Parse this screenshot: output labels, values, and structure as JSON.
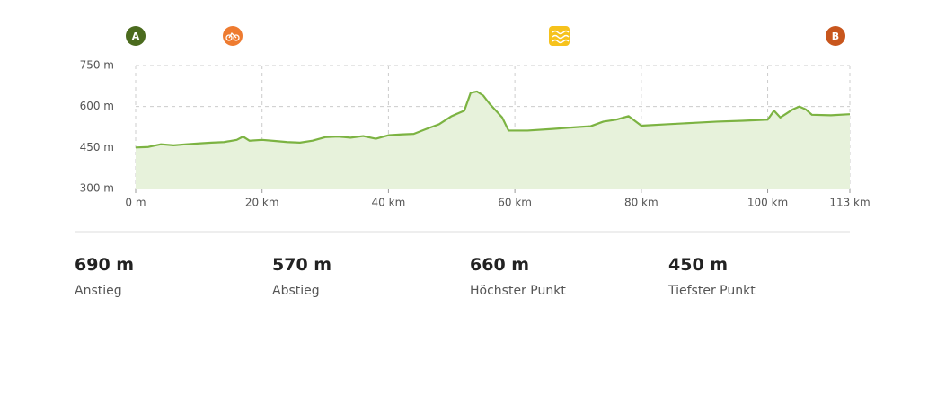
{
  "chart_data": {
    "type": "area",
    "x": [
      0,
      2,
      4,
      6,
      8,
      10,
      12,
      14,
      16,
      17,
      18,
      20,
      22,
      24,
      26,
      28,
      30,
      32,
      34,
      36,
      38,
      40,
      42,
      44,
      46,
      48,
      50,
      52,
      53,
      54,
      55,
      56,
      58,
      59,
      62,
      66,
      70,
      72,
      74,
      76,
      78,
      80,
      84,
      88,
      92,
      96,
      100,
      101,
      102,
      103,
      104,
      105,
      106,
      107,
      110,
      113
    ],
    "series": [
      {
        "color": "#7cb342",
        "fill": "#e7f2db",
        "values": [
          450,
          452,
          462,
          458,
          462,
          465,
          468,
          470,
          478,
          490,
          475,
          478,
          474,
          470,
          468,
          475,
          488,
          490,
          486,
          492,
          482,
          495,
          498,
          500,
          518,
          535,
          565,
          585,
          650,
          655,
          640,
          610,
          560,
          512,
          512,
          518,
          525,
          528,
          545,
          552,
          565,
          530,
          535,
          540,
          545,
          548,
          552,
          585,
          560,
          575,
          590,
          600,
          590,
          570,
          568,
          572
        ]
      }
    ],
    "xlim": [
      0,
      113
    ],
    "xticks": [
      {
        "value": 0,
        "label": "0 m"
      },
      {
        "value": 20,
        "label": "20 km"
      },
      {
        "value": 40,
        "label": "40 km"
      },
      {
        "value": 60,
        "label": "60 km"
      },
      {
        "value": 80,
        "label": "80 km"
      },
      {
        "value": 100,
        "label": "100 km"
      },
      {
        "value": 113,
        "label": "113 km"
      }
    ],
    "ylim": [
      300,
      750
    ],
    "yticks": [
      {
        "value": 300,
        "label": "300 m"
      },
      {
        "value": 450,
        "label": "450 m"
      },
      {
        "value": 600,
        "label": "600 m"
      },
      {
        "value": 750,
        "label": "750 m"
      }
    ],
    "grid": true,
    "markers": [
      "A",
      "B"
    ]
  },
  "stats": [
    {
      "value": "690 m",
      "label": "Anstieg"
    },
    {
      "value": "570 m",
      "label": "Abstieg"
    },
    {
      "value": "660 m",
      "label": "Höchster Punkt"
    },
    {
      "value": "450 m",
      "label": "Tiefster Punkt"
    }
  ]
}
